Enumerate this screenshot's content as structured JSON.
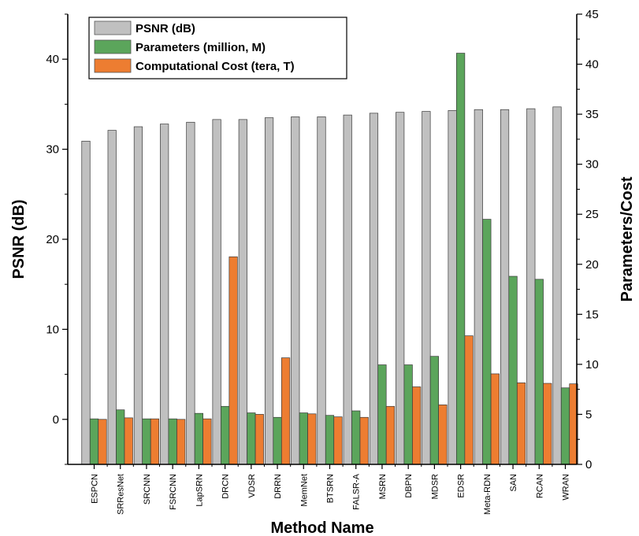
{
  "chart_data": {
    "type": "bar",
    "xlabel": "Method Name",
    "ylabel": "PSNR (dB)",
    "y2label": "Parameters/Cost",
    "ylim": [
      -5,
      45
    ],
    "y2lim": [
      0,
      45
    ],
    "yticks": [
      0,
      10,
      20,
      30,
      40
    ],
    "y2ticks": [
      0,
      5,
      10,
      15,
      20,
      25,
      30,
      35,
      40,
      45
    ],
    "legend_position": "top-left",
    "grid": false,
    "categories": [
      "ESPCN",
      "SRResNet",
      "SRCNN",
      "FSRCNN",
      "LapSRN",
      "DRCN",
      "VDSR",
      "DRRN",
      "MemNet",
      "BTSRN",
      "FALSR-A",
      "MSRN",
      "DBPN",
      "MDSR",
      "EDSR",
      "Meta-RDN",
      "SAN",
      "RCAN",
      "WRAN"
    ],
    "series": [
      {
        "name": "PSNR (dB)",
        "axis": "left",
        "color": "#c0c0c0",
        "values": [
          30.9,
          32.1,
          32.5,
          32.8,
          33.0,
          33.3,
          33.3,
          33.5,
          33.6,
          33.6,
          33.8,
          34.0,
          34.1,
          34.2,
          34.3,
          34.4,
          34.4,
          34.5,
          34.7
        ]
      },
      {
        "name": "Parameters (million, M)",
        "axis": "right",
        "color": "#5ba55b",
        "values": [
          4.55,
          5.45,
          4.55,
          4.55,
          5.1,
          5.8,
          5.15,
          4.7,
          5.15,
          4.9,
          5.35,
          9.95,
          9.95,
          10.8,
          41.1,
          24.5,
          18.8,
          18.5,
          7.65
        ]
      },
      {
        "name": "Computational Cost (tera, T)",
        "axis": "right",
        "color": "#ed7d31",
        "values": [
          4.5,
          4.65,
          4.55,
          4.5,
          4.55,
          20.75,
          5.0,
          10.65,
          5.05,
          4.75,
          4.7,
          5.8,
          7.75,
          5.95,
          12.85,
          9.05,
          8.15,
          8.1,
          8.05
        ]
      }
    ]
  }
}
